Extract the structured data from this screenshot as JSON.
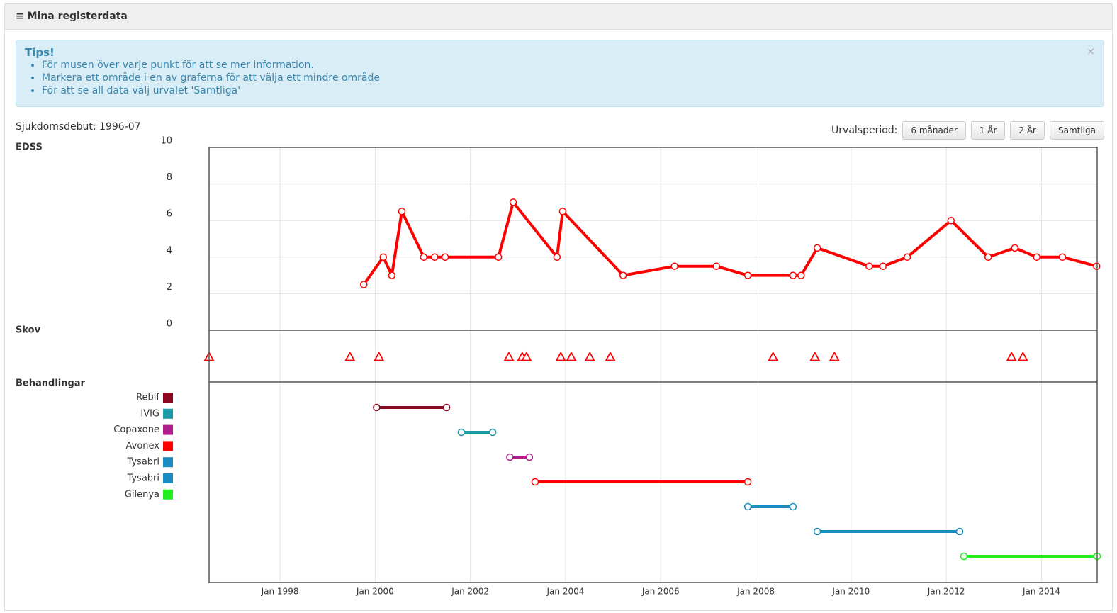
{
  "header": {
    "title": "Mina registerdata"
  },
  "tips": {
    "title": "Tips!",
    "close": "×",
    "items": [
      "För musen över varje punkt för att se mer information.",
      "Markera ett område i en av graferna för att välja ett mindre område",
      "För att se all data välj urvalet 'Samtliga'"
    ]
  },
  "onset": "Sjukdomsdebut: 1996-07",
  "period": {
    "label": "Urvalsperiod:",
    "buttons": [
      "6 månader",
      "1 År",
      "2 År",
      "Samtliga"
    ]
  },
  "chart_data": [
    {
      "type": "line",
      "title": "EDSS",
      "color": "#ff0000",
      "x": [
        1999.76,
        2000.17,
        2000.35,
        2000.56,
        2001.02,
        2001.25,
        2001.47,
        2002.59,
        2002.9,
        2003.82,
        2003.94,
        2005.21,
        2006.29,
        2007.17,
        2007.83,
        2008.78,
        2008.95,
        2009.29,
        2010.38,
        2010.67,
        2011.18,
        2012.1,
        2012.88,
        2013.44,
        2013.9,
        2014.44,
        2015.16
      ],
      "values": [
        2.5,
        4,
        3,
        6.5,
        4,
        4,
        4,
        4,
        7,
        4,
        6.5,
        3,
        3.5,
        3.5,
        3,
        3,
        3,
        4.5,
        3.5,
        3.5,
        4,
        6,
        4,
        4.5,
        4,
        4,
        3.5
      ],
      "xlim": [
        1996.51,
        2015.17
      ],
      "ylim": [
        0,
        10
      ],
      "yticks": [
        0,
        2,
        4,
        6,
        8,
        10
      ],
      "grid": true
    },
    {
      "type": "event",
      "title": "Skov",
      "color": "#ff0000",
      "x": [
        1996.51,
        1999.47,
        2000.08,
        2002.81,
        2003.09,
        2003.18,
        2003.9,
        2004.12,
        2004.51,
        2004.94,
        2008.36,
        2009.24,
        2009.65,
        2013.37,
        2013.61
      ],
      "xlim": [
        1996.51,
        2015.17
      ]
    },
    {
      "type": "range",
      "title": "Behandlingar",
      "xlim": [
        1996.51,
        2015.17
      ],
      "xticks": [
        {
          "value": 1998,
          "label": "Jan 1998"
        },
        {
          "value": 2000,
          "label": "Jan 2000"
        },
        {
          "value": 2002,
          "label": "Jan 2002"
        },
        {
          "value": 2004,
          "label": "Jan 2004"
        },
        {
          "value": 2006,
          "label": "Jan 2006"
        },
        {
          "value": 2008,
          "label": "Jan 2008"
        },
        {
          "value": 2010,
          "label": "Jan 2010"
        },
        {
          "value": 2012,
          "label": "Jan 2012"
        },
        {
          "value": 2014,
          "label": "Jan 2014"
        }
      ],
      "grid": true,
      "series": [
        {
          "name": "Rebif",
          "color": "#8b0a22",
          "start": 2000.03,
          "end": 2001.5
        },
        {
          "name": "IVIG",
          "color": "#1c9aa8",
          "start": 2001.81,
          "end": 2002.47
        },
        {
          "name": "Copaxone",
          "color": "#b01e8c",
          "start": 2002.83,
          "end": 2003.24
        },
        {
          "name": "Avonex",
          "color": "#ff0000",
          "start": 2003.36,
          "end": 2007.83
        },
        {
          "name": "Tysabri",
          "color": "#1a8cc0",
          "start": 2007.83,
          "end": 2008.78
        },
        {
          "name": "Tysabri",
          "color": "#1a8cc0",
          "start": 2009.29,
          "end": 2012.28
        },
        {
          "name": "Gilenya",
          "color": "#22ee22",
          "start": 2012.37,
          "end": 2015.17
        }
      ]
    }
  ]
}
